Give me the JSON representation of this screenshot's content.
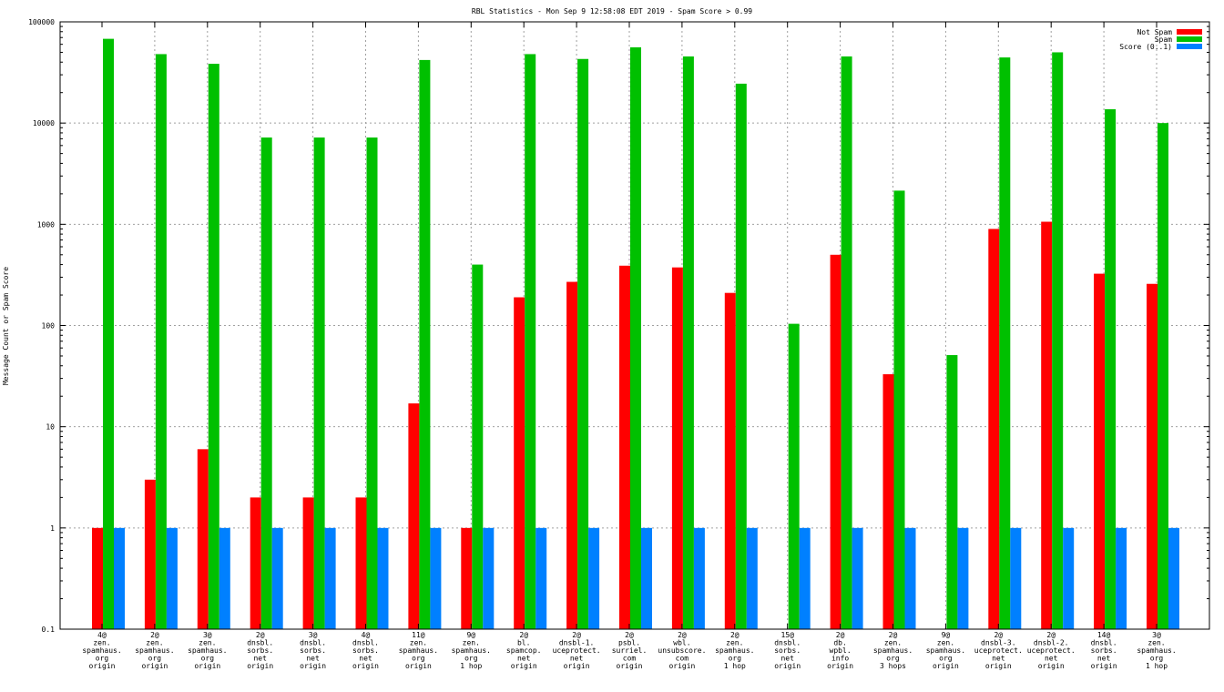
{
  "chart_data": {
    "type": "bar",
    "title": "RBL Statistics - Mon Sep  9 12:58:08 EDT 2019 - Spam Score > 0.99",
    "xlabel": "",
    "ylabel": "Message Count or Spam Score",
    "yscale": "log",
    "ylim": [
      0.1,
      100000
    ],
    "yticks": [
      "0.1",
      "1",
      "10",
      "100",
      "1000",
      "10000",
      "100000"
    ],
    "grid": true,
    "legend_position": "top-right",
    "categories": [
      [
        "4@",
        "zen.",
        "spamhaus.",
        "org",
        "origin"
      ],
      [
        "2@",
        "zen.",
        "spamhaus.",
        "org",
        "origin"
      ],
      [
        "3@",
        "zen.",
        "spamhaus.",
        "org",
        "origin"
      ],
      [
        "2@",
        "dnsbl.",
        "sorbs.",
        "net",
        "origin"
      ],
      [
        "3@",
        "dnsbl.",
        "sorbs.",
        "net",
        "origin"
      ],
      [
        "4@",
        "dnsbl.",
        "sorbs.",
        "net",
        "origin"
      ],
      [
        "11@",
        "zen.",
        "spamhaus.",
        "org",
        "origin"
      ],
      [
        "9@",
        "zen.",
        "spamhaus.",
        "org",
        "1 hop"
      ],
      [
        "2@",
        "bl.",
        "spamcop.",
        "net",
        "origin"
      ],
      [
        "2@",
        "dnsbl-1.",
        "uceprotect.",
        "net",
        "origin"
      ],
      [
        "2@",
        "psbl.",
        "surriel.",
        "com",
        "origin"
      ],
      [
        "2@",
        "wbl.",
        "unsubscore.",
        "com",
        "origin"
      ],
      [
        "2@",
        "zen.",
        "spamhaus.",
        "org",
        "1 hop"
      ],
      [
        "15@",
        "dnsbl.",
        "sorbs.",
        "net",
        "origin"
      ],
      [
        "2@",
        "db.",
        "wpbl.",
        "info",
        "origin"
      ],
      [
        "2@",
        "zen.",
        "spamhaus.",
        "org",
        "3 hops"
      ],
      [
        "9@",
        "zen.",
        "spamhaus.",
        "org",
        "origin"
      ],
      [
        "2@",
        "dnsbl-3.",
        "uceprotect.",
        "net",
        "origin"
      ],
      [
        "2@",
        "dnsbl-2.",
        "uceprotect.",
        "net",
        "origin"
      ],
      [
        "14@",
        "dnsbl.",
        "sorbs.",
        "net",
        "origin"
      ],
      [
        "3@",
        "zen.",
        "spamhaus.",
        "org",
        "1 hop"
      ]
    ],
    "series": [
      {
        "name": "Not Spam",
        "color": "#ff0000",
        "values": [
          1,
          3,
          6,
          2,
          2,
          2,
          17,
          1,
          190,
          270,
          390,
          375,
          210,
          0,
          500,
          33,
          0,
          900,
          1060,
          325,
          258
        ]
      },
      {
        "name": "Spam",
        "color": "#00c000",
        "values": [
          68000,
          48000,
          38500,
          7200,
          7200,
          7200,
          42000,
          400,
          48000,
          43000,
          56000,
          45500,
          24500,
          104,
          45500,
          2150,
          51,
          44500,
          50000,
          13700,
          10000
        ]
      },
      {
        "name": "Score (0..1)",
        "color": "#0080ff",
        "values": [
          1,
          1,
          1,
          1,
          1,
          1,
          1,
          1,
          1,
          1,
          1,
          1,
          1,
          1,
          1,
          1,
          1,
          1,
          1,
          1,
          1
        ]
      }
    ]
  }
}
